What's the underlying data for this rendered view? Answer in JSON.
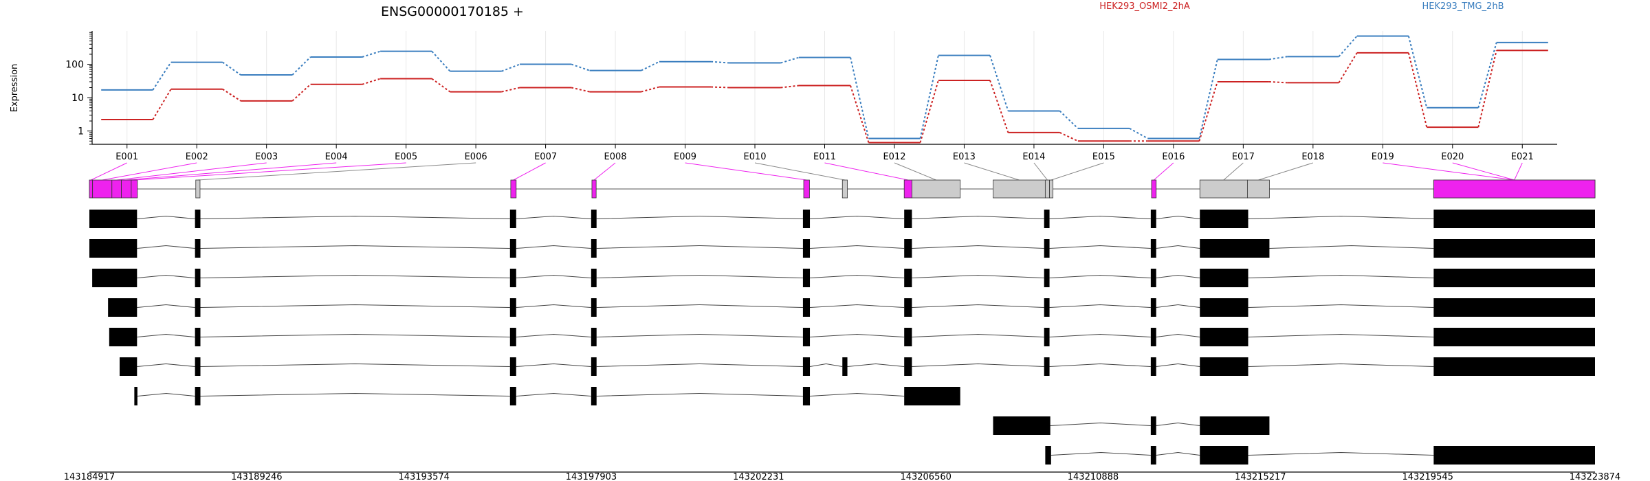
{
  "chart_data": [
    {
      "type": "line",
      "title": "ENSG00000170185 +",
      "ylabel": "Expression",
      "yscale": "log",
      "yticks": [
        1,
        10,
        100
      ],
      "ytick_labels": [
        "1",
        "10",
        "100"
      ],
      "ylim": [
        0.4,
        1000
      ],
      "grid": true,
      "legend_position": "top",
      "categories": [
        "E001",
        "E002",
        "E003",
        "E004",
        "E005",
        "E006",
        "E007",
        "E008",
        "E009",
        "E010",
        "E011",
        "E012",
        "E013",
        "E014",
        "E015",
        "E016",
        "E017",
        "E018",
        "E019",
        "E020",
        "E021"
      ],
      "series": [
        {
          "name": "HEK293_OSMI2_2hA",
          "color": "#cc2222",
          "values": [
            2.2,
            18,
            8,
            25,
            37,
            15,
            20,
            15,
            21,
            20,
            23,
            0.45,
            33,
            0.9,
            0.5,
            0.5,
            30,
            28,
            220,
            1.3,
            260
          ]
        },
        {
          "name": "HEK293_TMG_2hB",
          "color": "#3a7ebf",
          "values": [
            17,
            115,
            48,
            165,
            245,
            62,
            100,
            65,
            120,
            110,
            160,
            0.6,
            185,
            4,
            1.2,
            0.6,
            140,
            170,
            700,
            5,
            450
          ]
        }
      ]
    },
    {
      "type": "gene_model",
      "exon_color": "#ee22ee",
      "xlim": [
        143184917,
        143223874
      ],
      "xtick_labels": [
        "143184917",
        "143189246",
        "143193574",
        "143197903",
        "143202231",
        "143206560",
        "143210888",
        "143215217",
        "143219545",
        "143223874"
      ],
      "exon_bins": [
        {
          "label": "E001",
          "start": 143184917,
          "end": 143185000,
          "hl": true
        },
        {
          "label": "E002",
          "start": 143185000,
          "end": 143185500,
          "hl": true
        },
        {
          "label": "E003",
          "start": 143185500,
          "end": 143185745,
          "hl": true
        },
        {
          "label": "E004",
          "start": 143185745,
          "end": 143186000,
          "hl": true
        },
        {
          "label": "E005",
          "start": 143186000,
          "end": 143186160,
          "hl": true
        },
        {
          "label": "E006",
          "start": 143187670,
          "end": 143187780,
          "hl": false
        },
        {
          "label": "E007",
          "start": 143195820,
          "end": 143195960,
          "hl": true
        },
        {
          "label": "E008",
          "start": 143197920,
          "end": 143198030,
          "hl": true
        },
        {
          "label": "E009",
          "start": 143203400,
          "end": 143203550,
          "hl": true
        },
        {
          "label": "E010",
          "start": 143204400,
          "end": 143204530,
          "hl": false
        },
        {
          "label": "E011",
          "start": 143206000,
          "end": 143206200,
          "hl": true
        },
        {
          "label": "E012",
          "start": 143206200,
          "end": 143207450,
          "hl": false
        },
        {
          "label": "E013",
          "start": 143208300,
          "end": 143209650,
          "hl": false
        },
        {
          "label": "E014",
          "start": 143209650,
          "end": 143209760,
          "hl": false
        },
        {
          "label": "E015",
          "start": 143209760,
          "end": 143209850,
          "hl": false
        },
        {
          "label": "E016",
          "start": 143212400,
          "end": 143212520,
          "hl": true
        },
        {
          "label": "E017",
          "start": 143213650,
          "end": 143214880,
          "hl": false
        },
        {
          "label": "E018",
          "start": 143214880,
          "end": 143215450,
          "hl": false
        },
        {
          "label": "E019",
          "start": 143219700,
          "end": 143223874,
          "hl": true
        },
        {
          "label": "E020",
          "start": 143219700,
          "end": 143223874,
          "hl": true
        },
        {
          "label": "E021",
          "start": 143219700,
          "end": 143223874,
          "hl": true
        }
      ],
      "transcripts": [
        [
          [
            143184917,
            143186150
          ],
          [
            143187650,
            143187790
          ],
          [
            143195800,
            143195960
          ],
          [
            143197900,
            143198040
          ],
          [
            143203380,
            143203560
          ],
          [
            143206000,
            143206200
          ],
          [
            143209620,
            143209760
          ],
          [
            143212380,
            143212520
          ],
          [
            143213650,
            143214900
          ],
          [
            143219700,
            143223874
          ]
        ],
        [
          [
            143184917,
            143186150
          ],
          [
            143187650,
            143187790
          ],
          [
            143195800,
            143195960
          ],
          [
            143197900,
            143198040
          ],
          [
            143203380,
            143203560
          ],
          [
            143206000,
            143206200
          ],
          [
            143209620,
            143209760
          ],
          [
            143212380,
            143212520
          ],
          [
            143213650,
            143215450
          ],
          [
            143219700,
            143223874
          ]
        ],
        [
          [
            143184990,
            143186150
          ],
          [
            143187650,
            143187790
          ],
          [
            143195800,
            143195960
          ],
          [
            143197900,
            143198040
          ],
          [
            143203380,
            143203560
          ],
          [
            143206000,
            143206200
          ],
          [
            143209620,
            143209760
          ],
          [
            143212380,
            143212520
          ],
          [
            143213650,
            143214900
          ],
          [
            143219700,
            143223874
          ]
        ],
        [
          [
            143185400,
            143186150
          ],
          [
            143187650,
            143187790
          ],
          [
            143195800,
            143195960
          ],
          [
            143197900,
            143198040
          ],
          [
            143203380,
            143203560
          ],
          [
            143206000,
            143206200
          ],
          [
            143209620,
            143209760
          ],
          [
            143212380,
            143212520
          ],
          [
            143213650,
            143214900
          ],
          [
            143219700,
            143223874
          ]
        ],
        [
          [
            143185430,
            143186150
          ],
          [
            143187650,
            143187790
          ],
          [
            143195800,
            143195960
          ],
          [
            143197900,
            143198040
          ],
          [
            143203380,
            143203560
          ],
          [
            143206000,
            143206200
          ],
          [
            143209620,
            143209760
          ],
          [
            143212380,
            143212520
          ],
          [
            143213650,
            143214900
          ],
          [
            143219700,
            143223874
          ]
        ],
        [
          [
            143185700,
            143186150
          ],
          [
            143187650,
            143187790
          ],
          [
            143195800,
            143195960
          ],
          [
            143197900,
            143198040
          ],
          [
            143203380,
            143203560
          ],
          [
            143206000,
            143206200
          ],
          [
            143204400,
            143204530
          ],
          [
            143209620,
            143209760
          ],
          [
            143212380,
            143212520
          ],
          [
            143213650,
            143214900
          ],
          [
            143219700,
            143223874
          ]
        ],
        [
          [
            143186080,
            143186160
          ],
          [
            143187650,
            143187790
          ],
          [
            143195800,
            143195960
          ],
          [
            143197900,
            143198040
          ],
          [
            143203380,
            143203560
          ],
          [
            143206000,
            143207450
          ]
        ],
        [
          [
            143208300,
            143209780
          ],
          [
            143212380,
            143212520
          ],
          [
            143213650,
            143215450
          ]
        ],
        [
          [
            143209650,
            143209800
          ],
          [
            143212380,
            143212520
          ],
          [
            143213650,
            143214900
          ],
          [
            143219700,
            143223874
          ]
        ]
      ]
    }
  ]
}
